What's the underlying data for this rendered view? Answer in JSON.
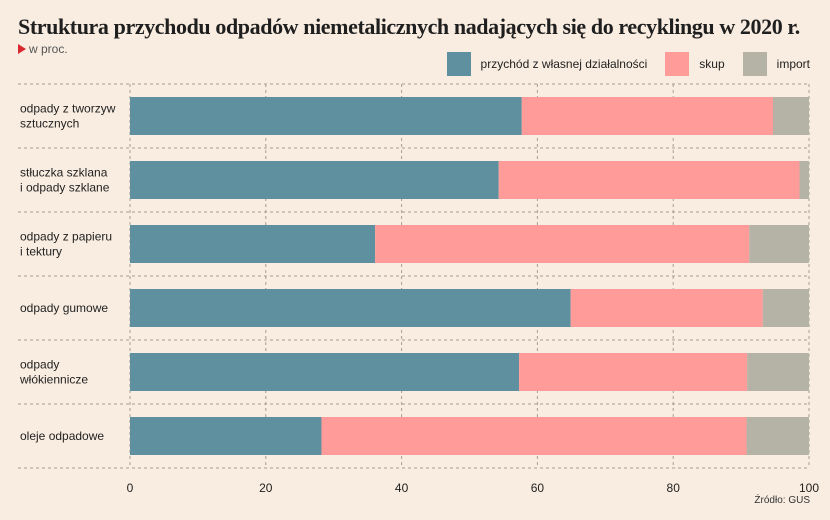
{
  "title": "Struktura przychodu odpadów niemetalicznych nadających się do recyklingu w 2020 r.",
  "subtitle": "w proc.",
  "source": "Źródło: GUS",
  "colors": {
    "own": "#5f909f",
    "purchase": "#ff9b99",
    "import": "#b5b2a6",
    "background": "#f9ede1"
  },
  "chart_data": {
    "type": "bar",
    "orientation": "horizontal",
    "stacked": true,
    "title": "Struktura przychodu odpadów niemetalicznych nadających się do recyklingu w 2020 r.",
    "subtitle": "w proc.",
    "categories": [
      [
        "odpady z tworzyw",
        "sztucznych"
      ],
      [
        "stłuczka szklana",
        "i odpady szklane"
      ],
      [
        "odpady z papieru",
        "i tektury"
      ],
      [
        "odpady gumowe"
      ],
      [
        "odpady",
        "włókiennicze"
      ],
      [
        "oleje odpadowe"
      ]
    ],
    "series": [
      {
        "name": "przychód z własnej działalności",
        "values": [
          57.7,
          54.3,
          36.1,
          64.9,
          57.3,
          28.2
        ]
      },
      {
        "name": "skup",
        "values": [
          37.0,
          44.3,
          55.1,
          28.3,
          33.6,
          62.6
        ]
      },
      {
        "name": "import",
        "values": [
          5.3,
          1.4,
          8.8,
          6.8,
          9.1,
          9.2
        ]
      }
    ],
    "xlim": [
      0,
      100
    ],
    "xticks": [
      0,
      20,
      40,
      60,
      80,
      100
    ],
    "grid": true,
    "legend": "top-right"
  }
}
